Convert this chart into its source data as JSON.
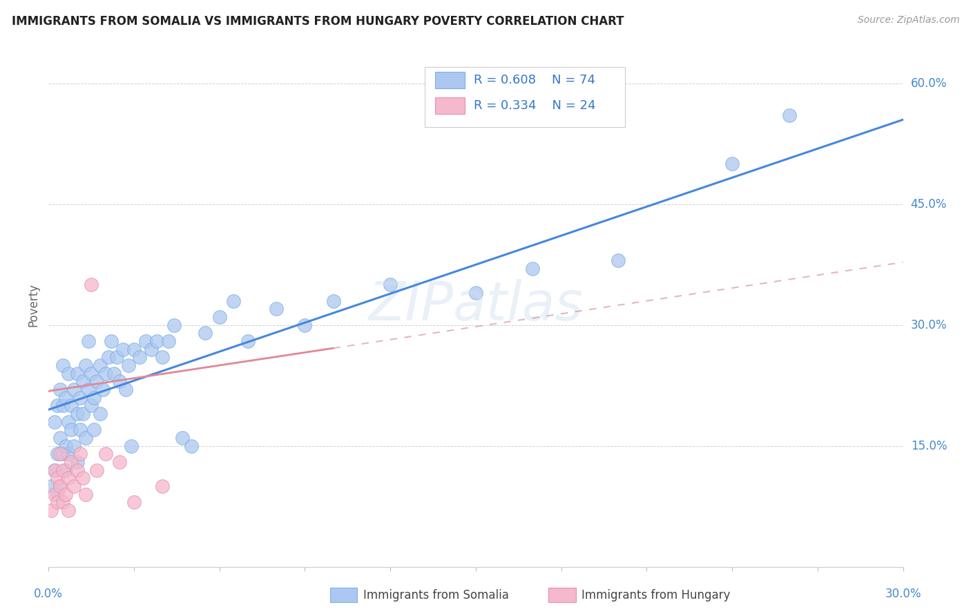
{
  "title": "IMMIGRANTS FROM SOMALIA VS IMMIGRANTS FROM HUNGARY POVERTY CORRELATION CHART",
  "source": "Source: ZipAtlas.com",
  "ylabel": "Poverty",
  "ytick_vals": [
    0.15,
    0.3,
    0.45,
    0.6
  ],
  "ytick_labels": [
    "15.0%",
    "30.0%",
    "45.0%",
    "60.0%"
  ],
  "xlim": [
    0.0,
    0.3
  ],
  "ylim": [
    0.0,
    0.65
  ],
  "somalia_color": "#adc8f0",
  "somalia_edge": "#7aaee8",
  "hungary_color": "#f5b8cc",
  "hungary_edge": "#e890a8",
  "regression_somalia_color": "#4488dd",
  "regression_hungary_color": "#e08898",
  "regression_hungary_dashed_color": "#d08898",
  "watermark": "ZIPatlas",
  "somalia_R": 0.608,
  "somalia_N": 74,
  "hungary_R": 0.334,
  "hungary_N": 24,
  "som_line_x0": 0.0,
  "som_line_y0": 0.195,
  "som_line_x1": 0.3,
  "som_line_y1": 0.555,
  "hun_line_x0": 0.0,
  "hun_line_y0": 0.218,
  "hun_line_x1": 0.3,
  "hun_line_y1": 0.378,
  "somalia_x": [
    0.001,
    0.002,
    0.002,
    0.003,
    0.003,
    0.003,
    0.004,
    0.004,
    0.004,
    0.005,
    0.005,
    0.005,
    0.006,
    0.006,
    0.006,
    0.007,
    0.007,
    0.007,
    0.008,
    0.008,
    0.009,
    0.009,
    0.01,
    0.01,
    0.01,
    0.011,
    0.011,
    0.012,
    0.012,
    0.013,
    0.013,
    0.014,
    0.014,
    0.015,
    0.015,
    0.016,
    0.016,
    0.017,
    0.018,
    0.018,
    0.019,
    0.02,
    0.021,
    0.022,
    0.023,
    0.024,
    0.025,
    0.026,
    0.027,
    0.028,
    0.029,
    0.03,
    0.032,
    0.034,
    0.036,
    0.038,
    0.04,
    0.042,
    0.044,
    0.047,
    0.05,
    0.055,
    0.06,
    0.065,
    0.07,
    0.08,
    0.09,
    0.1,
    0.12,
    0.15,
    0.17,
    0.2,
    0.24,
    0.26
  ],
  "somalia_y": [
    0.1,
    0.12,
    0.18,
    0.14,
    0.2,
    0.09,
    0.16,
    0.22,
    0.1,
    0.14,
    0.2,
    0.25,
    0.15,
    0.21,
    0.12,
    0.18,
    0.24,
    0.14,
    0.2,
    0.17,
    0.22,
    0.15,
    0.19,
    0.24,
    0.13,
    0.21,
    0.17,
    0.23,
    0.19,
    0.25,
    0.16,
    0.22,
    0.28,
    0.2,
    0.24,
    0.21,
    0.17,
    0.23,
    0.19,
    0.25,
    0.22,
    0.24,
    0.26,
    0.28,
    0.24,
    0.26,
    0.23,
    0.27,
    0.22,
    0.25,
    0.15,
    0.27,
    0.26,
    0.28,
    0.27,
    0.28,
    0.26,
    0.28,
    0.3,
    0.16,
    0.15,
    0.29,
    0.31,
    0.33,
    0.28,
    0.32,
    0.3,
    0.33,
    0.35,
    0.34,
    0.37,
    0.38,
    0.5,
    0.56
  ],
  "hungary_x": [
    0.001,
    0.002,
    0.002,
    0.003,
    0.003,
    0.004,
    0.004,
    0.005,
    0.005,
    0.006,
    0.007,
    0.007,
    0.008,
    0.009,
    0.01,
    0.011,
    0.012,
    0.013,
    0.015,
    0.017,
    0.02,
    0.025,
    0.03,
    0.04
  ],
  "hungary_y": [
    0.07,
    0.09,
    0.12,
    0.08,
    0.11,
    0.1,
    0.14,
    0.08,
    0.12,
    0.09,
    0.11,
    0.07,
    0.13,
    0.1,
    0.12,
    0.14,
    0.11,
    0.09,
    0.35,
    0.12,
    0.14,
    0.13,
    0.08,
    0.1
  ]
}
